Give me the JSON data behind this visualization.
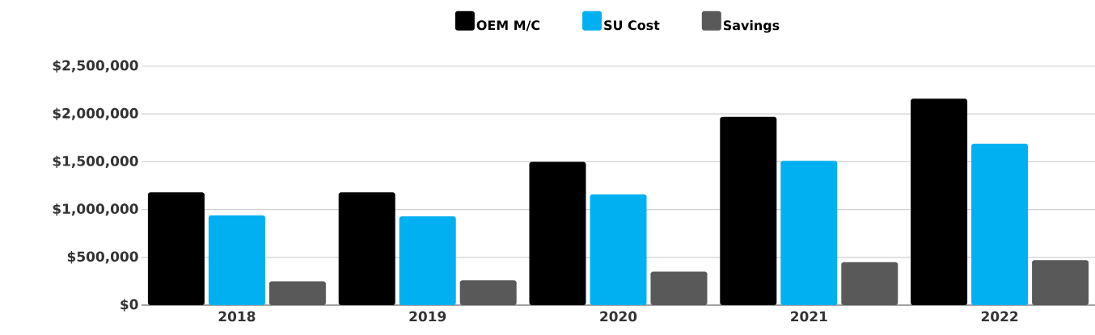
{
  "chart_data": {
    "type": "bar",
    "categories": [
      "2018",
      "2019",
      "2020",
      "2021",
      "2022"
    ],
    "series": [
      {
        "name": "OEM M/C",
        "color": "#000000",
        "values": [
          1180000,
          1180000,
          1500000,
          1970000,
          2160000
        ]
      },
      {
        "name": "SU Cost",
        "color": "#00b0f0",
        "values": [
          940000,
          930000,
          1160000,
          1510000,
          1690000
        ]
      },
      {
        "name": "Savings",
        "color": "#595959",
        "values": [
          250000,
          260000,
          350000,
          450000,
          470000
        ]
      }
    ],
    "ylim": [
      0,
      2500000
    ],
    "yticks": [
      {
        "value": 0,
        "label": "$0"
      },
      {
        "value": 500000,
        "label": "$500,000"
      },
      {
        "value": 1000000,
        "label": "$1,000,000"
      },
      {
        "value": 1500000,
        "label": "$1,500,000"
      },
      {
        "value": 2000000,
        "label": "$2,000,000"
      },
      {
        "value": 2500000,
        "label": "$2,500,000"
      }
    ],
    "grid": "y",
    "legend": "top"
  }
}
